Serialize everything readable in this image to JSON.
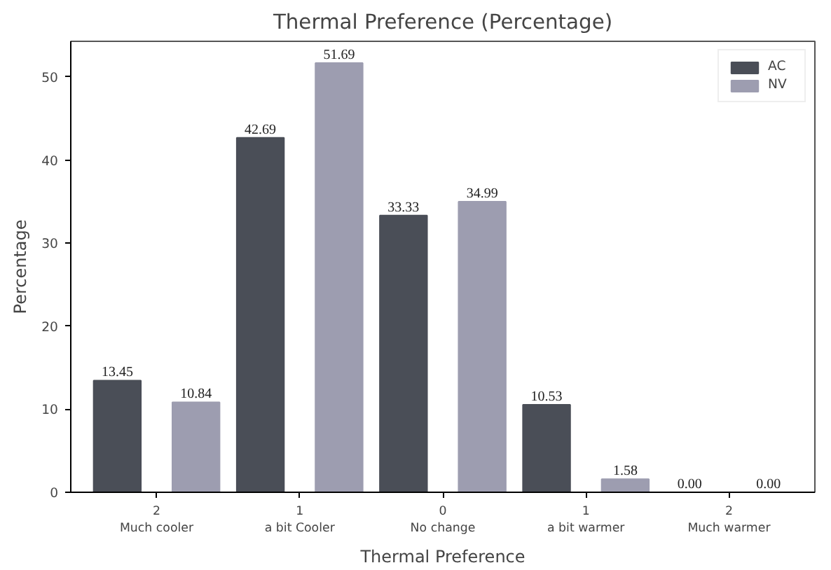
{
  "chart_data": {
    "type": "bar",
    "title": "Thermal Preference (Percentage)",
    "xlabel": "Thermal Preference",
    "ylabel": "Percentage",
    "categories": [
      "2\nMuch cooler",
      "1\na bit Cooler",
      "0\nNo change",
      "1\na bit warmer",
      "2\nMuch warmer"
    ],
    "series": [
      {
        "name": "AC",
        "color": "#4a4e57",
        "values": [
          13.45,
          42.69,
          33.33,
          10.53,
          0.0
        ],
        "value_labels": [
          "13.45",
          "42.69",
          "33.33",
          "10.53",
          "0.00"
        ]
      },
      {
        "name": "NV",
        "color": "#9d9db0",
        "values": [
          10.84,
          51.69,
          34.99,
          1.58,
          0.0
        ],
        "value_labels": [
          "10.84",
          "51.69",
          "34.99",
          "1.58",
          "0.00"
        ]
      }
    ],
    "ylim": [
      0,
      54.3
    ],
    "yticks": [
      0,
      10,
      20,
      30,
      40,
      50
    ],
    "grid": false,
    "legend": "top right"
  }
}
